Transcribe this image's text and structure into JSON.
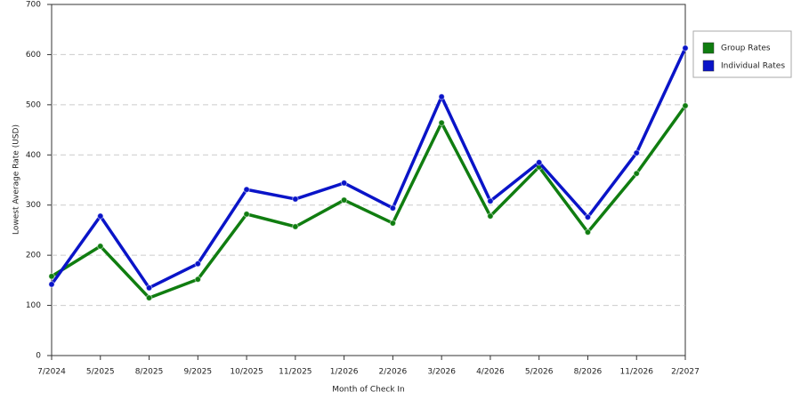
{
  "chart_data": {
    "type": "line",
    "x_label": "Month of Check In",
    "y_label": "Lowest Average Rate (USD)",
    "categories": [
      "7/2024",
      "5/2025",
      "8/2025",
      "9/2025",
      "10/2025",
      "11/2025",
      "1/2026",
      "2/2026",
      "3/2026",
      "4/2026",
      "5/2026",
      "8/2026",
      "11/2026",
      "2/2027"
    ],
    "series": [
      {
        "name": "Group Rates",
        "color": "#107d10",
        "values": [
          158,
          218,
          115,
          152,
          282,
          257,
          310,
          264,
          464,
          278,
          376,
          246,
          363,
          498
        ]
      },
      {
        "name": "Individual Rates",
        "color": "#0a14c8",
        "values": [
          142,
          278,
          135,
          183,
          331,
          312,
          344,
          294,
          516,
          308,
          385,
          276,
          404,
          613
        ]
      }
    ],
    "ylim": [
      0,
      700
    ],
    "yticks": [
      0,
      100,
      200,
      300,
      400,
      500,
      600,
      700
    ],
    "grid": true
  }
}
